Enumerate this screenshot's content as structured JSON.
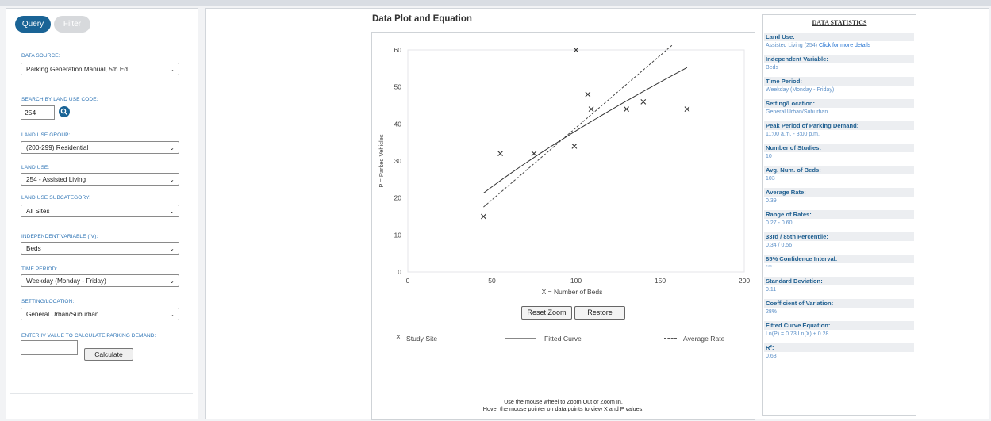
{
  "tabs": {
    "query": "Query",
    "filter": "Filter"
  },
  "form": {
    "data_source": {
      "label": "DATA SOURCE:",
      "value": "Parking Generation Manual, 5th Ed"
    },
    "search": {
      "label": "SEARCH BY LAND USE CODE:",
      "value": "254"
    },
    "land_use_group": {
      "label": "LAND USE GROUP:",
      "value": "(200-299) Residential"
    },
    "land_use": {
      "label": "LAND USE:",
      "value": "254 - Assisted Living"
    },
    "land_use_subcategory": {
      "label": "LAND USE SUBCATEGORY:",
      "value": "All Sites"
    },
    "independent_variable": {
      "label": "INDEPENDENT VARIABLE (IV):",
      "value": "Beds"
    },
    "time_period": {
      "label": "TIME PERIOD:",
      "value": "Weekday (Monday - Friday)"
    },
    "setting": {
      "label": "SETTING/LOCATION:",
      "value": "General Urban/Suburban"
    },
    "iv_value": {
      "label": "ENTER IV VALUE TO CALCULATE PARKING DEMAND:",
      "value": ""
    },
    "calculate_label": "Calculate"
  },
  "plot": {
    "title": "Data Plot and Equation",
    "xlabel": "X = Number of Beds",
    "ylabel": "P = Parked Vehicles",
    "reset_zoom": "Reset Zoom",
    "restore": "Restore",
    "legend": {
      "study_site": "Study Site",
      "fitted_curve": "Fitted Curve",
      "average_rate": "Average Rate"
    },
    "help_line1": "Use the mouse wheel to Zoom Out or Zoom In.",
    "help_line2": "Hover the mouse pointer on data points to view X and P values."
  },
  "chart_data": {
    "type": "scatter",
    "xlim": [
      0,
      200
    ],
    "ylim": [
      0,
      60
    ],
    "xticks": [
      "0",
      "50",
      "100",
      "150",
      "200"
    ],
    "yticks": [
      "0",
      "10",
      "20",
      "30",
      "40",
      "50",
      "60"
    ],
    "xlabel": "X = Number of Beds",
    "ylabel": "P = Parked Vehicles",
    "points": [
      {
        "x": 45,
        "y": 15
      },
      {
        "x": 55,
        "y": 32
      },
      {
        "x": 75,
        "y": 32
      },
      {
        "x": 99,
        "y": 34
      },
      {
        "x": 100,
        "y": 60
      },
      {
        "x": 107,
        "y": 48
      },
      {
        "x": 109,
        "y": 44
      },
      {
        "x": 130,
        "y": 44
      },
      {
        "x": 140,
        "y": 46
      },
      {
        "x": 166,
        "y": 44
      }
    ],
    "fitted_curve": {
      "equation": "Ln(P) = 0.73 Ln(X) + 0.28",
      "x_range": [
        45,
        166
      ]
    },
    "average_rate": {
      "rate": 0.39,
      "x_range": [
        45,
        157
      ]
    },
    "grid": false,
    "legend_position": "bottom"
  },
  "stats": {
    "title": "DATA STATISTICS",
    "land_use_label": "Land Use:",
    "land_use_value": "Assisted Living (254)",
    "land_use_link": "Click for more details",
    "items": [
      {
        "label": "Independent Variable:",
        "value": "Beds"
      },
      {
        "label": "Time Period:",
        "value": "Weekday (Monday - Friday)"
      },
      {
        "label": "Setting/Location:",
        "value": "General Urban/Suburban"
      },
      {
        "label": "Peak Period of Parking Demand:",
        "value": "11:00 a.m. - 3:00 p.m."
      },
      {
        "label": "Number of Studies:",
        "value": "10"
      },
      {
        "label": "Avg. Num. of Beds:",
        "value": "103"
      },
      {
        "label": "Average Rate:",
        "value": "0.39"
      },
      {
        "label": "Range of Rates:",
        "value": "0.27 - 0.60"
      },
      {
        "label": "33rd / 85th Percentile:",
        "value": "0.34 / 0.56"
      },
      {
        "label": "85% Confidence Interval:",
        "value": "***"
      },
      {
        "label": "Standard Deviation:",
        "value": "0.11"
      },
      {
        "label": "Coefficient of Variation:",
        "value": "28%"
      },
      {
        "label": "Fitted Curve Equation:",
        "value": "Ln(P) = 0.73 Ln(X) + 0.28"
      },
      {
        "label": "R²:",
        "value": "0.63"
      }
    ]
  }
}
